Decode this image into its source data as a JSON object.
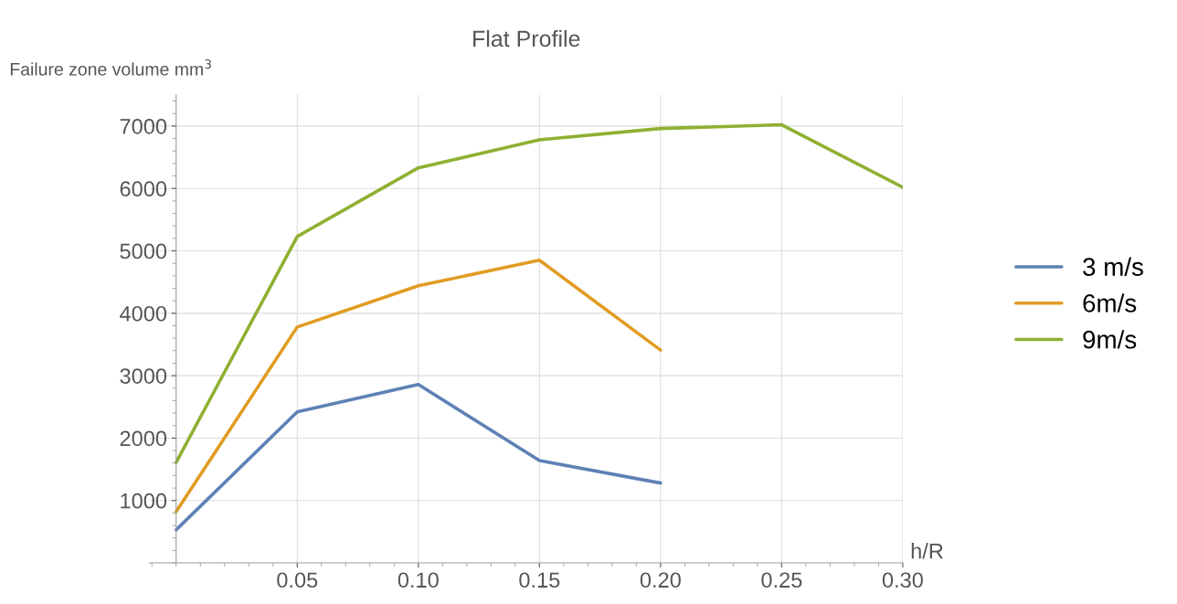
{
  "chart_data": {
    "type": "line",
    "title": "Flat Profile",
    "xlabel": "h/R",
    "ylabel": "Failure zone volume mm$^{3}$",
    "x": [
      0,
      0.05,
      0.1,
      0.15,
      0.2,
      0.25,
      0.3
    ],
    "series": [
      {
        "name": "3 m/s",
        "color": "#5e81b5",
        "values": [
          530,
          2420,
          2860,
          1640,
          1280,
          null,
          null
        ]
      },
      {
        "name": "6m/s",
        "color": "#e19c24",
        "values": [
          820,
          3780,
          4440,
          4850,
          3410,
          null,
          null
        ]
      },
      {
        "name": "9m/s",
        "color": "#8fb032",
        "values": [
          1610,
          5230,
          6330,
          6780,
          6960,
          7020,
          6020
        ]
      }
    ],
    "xlim": [
      -0.011,
      0.3
    ],
    "ylim": [
      0,
      7500
    ],
    "xticks": [
      0.05,
      {
        "value": 0.1,
        "label": "0.10"
      },
      0.15,
      {
        "value": 0.2,
        "label": "0.20"
      },
      0.25,
      {
        "value": 0.3,
        "label": "0.30"
      }
    ],
    "yticks": [
      1000,
      2000,
      3000,
      4000,
      5000,
      6000,
      7000
    ],
    "grid": true,
    "legend": "right",
    "marker": "none",
    "line_style": "solid"
  }
}
